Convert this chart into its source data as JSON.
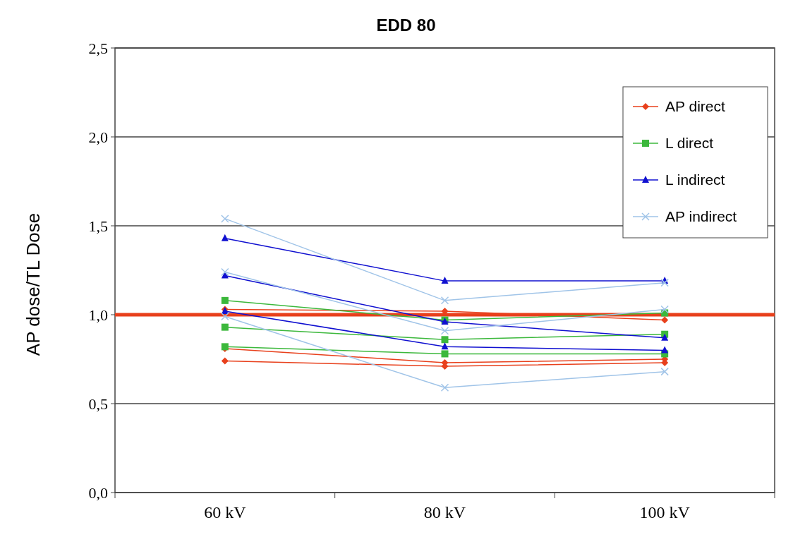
{
  "chart_data": {
    "type": "line",
    "title": "EDD 80",
    "ylabel": "AP dose/TL Dose",
    "categories": [
      "60 kV",
      "80 kV",
      "100 kV"
    ],
    "series": [
      {
        "name": "AP direct",
        "color": "#e8401c",
        "marker": "diamond",
        "values": [
          1.03,
          1.02,
          0.97
        ]
      },
      {
        "name": "L direct",
        "color": "#3cb83c",
        "marker": "square",
        "values": [
          1.08,
          0.97,
          1.01
        ]
      },
      {
        "name": "L indirect",
        "color": "#1010d0",
        "marker": "triangle",
        "values": [
          1.43,
          1.19,
          1.19
        ]
      },
      {
        "name": "AP indirect",
        "color": "#a0c4e8",
        "marker": "cross",
        "values": [
          1.54,
          1.08,
          1.18
        ]
      },
      {
        "color": "#e8401c",
        "marker": "diamond",
        "values": [
          0.81,
          0.73,
          0.75
        ]
      },
      {
        "color": "#e8401c",
        "marker": "diamond",
        "values": [
          0.74,
          0.71,
          0.73
        ]
      },
      {
        "color": "#3cb83c",
        "marker": "square",
        "values": [
          0.93,
          0.86,
          0.89
        ]
      },
      {
        "color": "#3cb83c",
        "marker": "square",
        "values": [
          0.82,
          0.78,
          0.78
        ]
      },
      {
        "color": "#1010d0",
        "marker": "triangle",
        "values": [
          1.22,
          0.96,
          0.87
        ]
      },
      {
        "color": "#1010d0",
        "marker": "triangle",
        "values": [
          1.02,
          0.82,
          0.8
        ]
      },
      {
        "color": "#a0c4e8",
        "marker": "cross",
        "values": [
          1.24,
          0.91,
          1.03
        ]
      },
      {
        "color": "#a0c4e8",
        "marker": "cross",
        "values": [
          0.99,
          0.59,
          0.68
        ]
      }
    ],
    "ylim": [
      0,
      2.5
    ],
    "yticks": [
      {
        "value": 0,
        "label": "0,0"
      },
      {
        "value": 0.5,
        "label": "0,5"
      },
      {
        "value": 1,
        "label": "1,0"
      },
      {
        "value": 1.5,
        "label": "1,5"
      },
      {
        "value": 2,
        "label": "2,0"
      },
      {
        "value": 2.5,
        "label": "2,5"
      }
    ],
    "grid": "y",
    "legend": "top right",
    "ref_lines": [
      {
        "axis": "y",
        "value": 1,
        "color": "#e8401c"
      }
    ]
  }
}
